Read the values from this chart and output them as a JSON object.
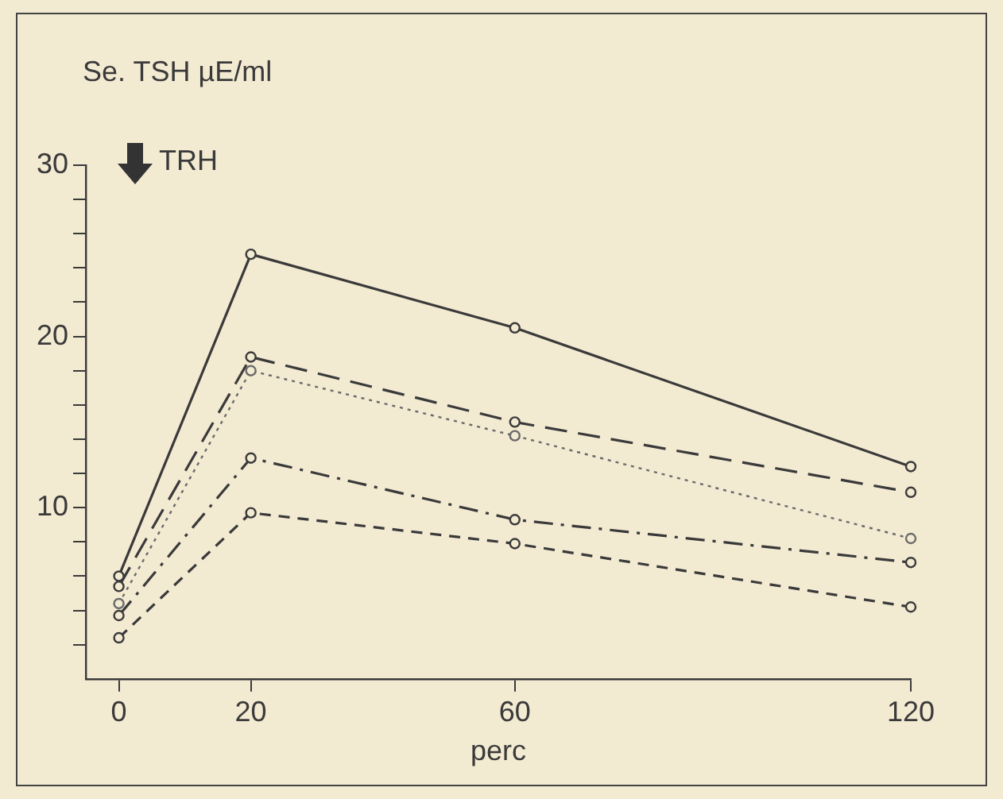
{
  "chart_data": {
    "type": "line",
    "ylabel": "Se. TSH µE/ml",
    "xlabel": "perc",
    "annotations": [
      "TRH"
    ],
    "x": [
      0,
      20,
      60,
      120
    ],
    "xlim": [
      -5,
      120
    ],
    "xticks": [
      0,
      20,
      60,
      120
    ],
    "ylim": [
      0,
      30
    ],
    "yticks": [
      {
        "value": 2,
        "label": null
      },
      {
        "value": 4,
        "label": null
      },
      {
        "value": 6,
        "label": null
      },
      {
        "value": 8,
        "label": null
      },
      10,
      {
        "value": 12,
        "label": null
      },
      {
        "value": 14,
        "label": null
      },
      {
        "value": 16,
        "label": null
      },
      {
        "value": 18,
        "label": null
      },
      20,
      {
        "value": 22,
        "label": null
      },
      {
        "value": 24,
        "label": null
      },
      {
        "value": 26,
        "label": null
      },
      {
        "value": 28,
        "label": null
      },
      30
    ],
    "grid": false,
    "legend": false,
    "marker": "circle",
    "series": [
      {
        "color": "#3a3a3a",
        "line_style": "solid",
        "values": [
          6.0,
          24.8,
          20.5,
          12.4
        ]
      },
      {
        "color": "#3a3a3a",
        "line_style": "dashed",
        "values": [
          5.4,
          18.8,
          15.0,
          10.9
        ]
      },
      {
        "color": "#6a6a6a",
        "line_style": "dotted",
        "values": [
          4.4,
          18.0,
          14.2,
          8.2
        ]
      },
      {
        "color": "#3a3a3a",
        "line_style": "dashdot",
        "values": [
          3.7,
          12.9,
          9.3,
          6.8
        ]
      },
      {
        "color": "#3a3a3a",
        "line_style": "shortdash",
        "values": [
          2.4,
          9.7,
          7.9,
          4.2
        ]
      }
    ]
  }
}
